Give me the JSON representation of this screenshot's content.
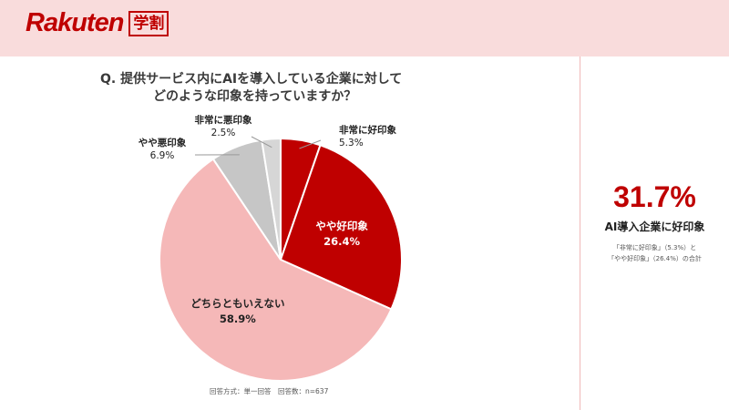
{
  "brand": {
    "name": "Rakuten",
    "badge": "学割"
  },
  "question": {
    "line1": "Q. 提供サービス内にAIを導入している企業に対して",
    "line2": "どのような印象を持っていますか？"
  },
  "footnote": "回答方式：単一回答　回答数：n=637",
  "summary": {
    "percent": "31.7%",
    "label": "AI導入企業に好印象",
    "note_line1": "「非常に好印象」（5.3%）と",
    "note_line2": "「やや好印象」（26.4%）の合計"
  },
  "chart_data": {
    "type": "pie",
    "title": "Q. 提供サービス内にAIを導入している企業に対してどのような印象を持っていますか？",
    "start": "top",
    "direction": "clockwise",
    "slices": [
      {
        "label": "非常に好印象",
        "value": 5.3,
        "display": "5.3%",
        "color": "#bf0000",
        "label_position": "outside"
      },
      {
        "label": "やや好印象",
        "value": 26.4,
        "display": "26.4%",
        "color": "#bf0000",
        "label_position": "inside",
        "label_color": "#ffffff"
      },
      {
        "label": "どちらともいえない",
        "value": 58.9,
        "display": "58.9%",
        "color": "#f5b8b8",
        "label_position": "inside",
        "label_color": "#222222"
      },
      {
        "label": "やや悪印象",
        "value": 6.9,
        "display": "6.9%",
        "color": "#c6c6c6",
        "label_position": "outside"
      },
      {
        "label": "非常に悪印象",
        "value": 2.5,
        "display": "2.5%",
        "color": "#d6d6d6",
        "label_position": "outside"
      }
    ]
  }
}
